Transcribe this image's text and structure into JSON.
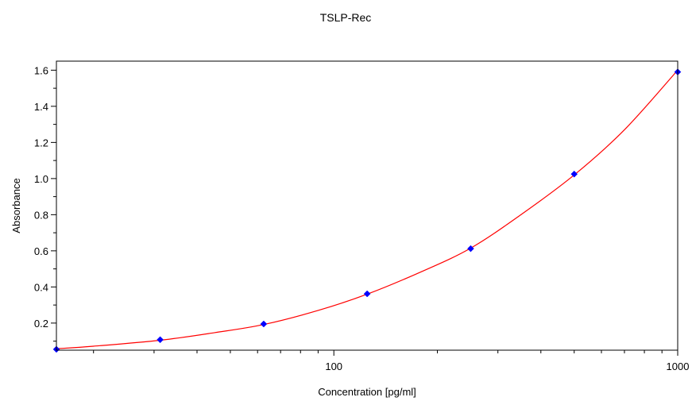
{
  "chart_data": {
    "type": "scatter",
    "title": "TSLP-Rec",
    "xlabel": "Concentration [pg/ml]",
    "ylabel": "Absorbance",
    "x_scale": "log",
    "xlim": [
      15.6,
      1000
    ],
    "ylim": [
      0.05,
      1.65
    ],
    "x_ticks": [
      {
        "value": 100,
        "label": "100"
      },
      {
        "value": 1000,
        "label": "1000"
      }
    ],
    "y_ticks": [
      {
        "value": 0.2,
        "label": "0.2"
      },
      {
        "value": 0.4,
        "label": "0.4"
      },
      {
        "value": 0.6,
        "label": "0.6"
      },
      {
        "value": 0.8,
        "label": "0.8"
      },
      {
        "value": 1.0,
        "label": "1.0"
      },
      {
        "value": 1.2,
        "label": "1.2"
      },
      {
        "value": 1.4,
        "label": "1.4"
      },
      {
        "value": 1.6,
        "label": "1.6"
      }
    ],
    "grid": false,
    "legend": "none",
    "series": [
      {
        "kind": "points",
        "color": "#0000ff",
        "x": [
          15.6,
          31.25,
          62.5,
          125,
          250,
          500,
          1000
        ],
        "y": [
          0.055,
          0.108,
          0.195,
          0.362,
          0.612,
          1.025,
          1.59
        ]
      },
      {
        "kind": "fit-curve",
        "color": "#ff0000",
        "x": [
          15.6,
          20,
          31.25,
          45,
          62.5,
          90,
          125,
          180,
          250,
          350,
          500,
          700,
          1000
        ],
        "y": [
          0.058,
          0.072,
          0.105,
          0.147,
          0.192,
          0.27,
          0.36,
          0.485,
          0.615,
          0.8,
          1.02,
          1.27,
          1.6
        ]
      }
    ]
  }
}
